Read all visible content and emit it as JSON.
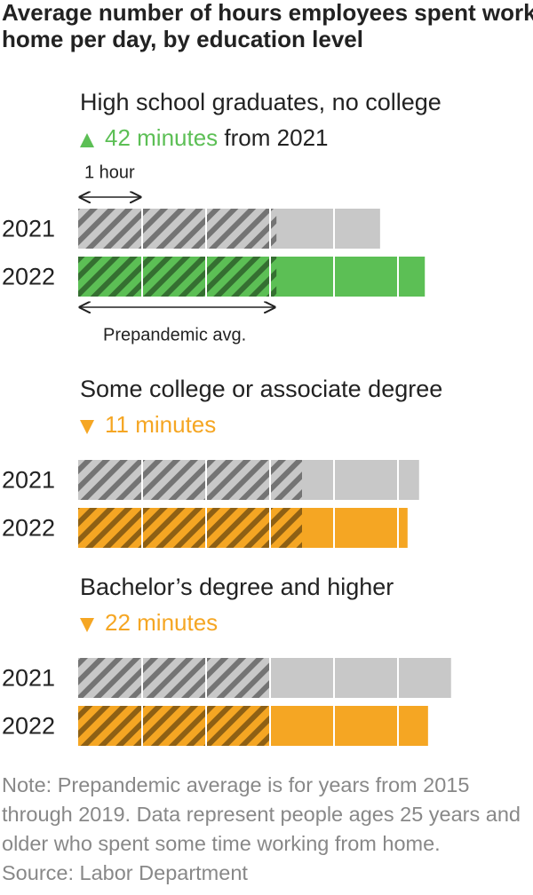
{
  "chart_data": {
    "type": "bar",
    "orientation": "horizontal",
    "title": "Average number of hours employees spent working at home per day, by education level",
    "xlim": [
      0,
      7
    ],
    "xticks": [
      1,
      2,
      3,
      4,
      5,
      6
    ],
    "scale_annotation": {
      "label": "1 hour",
      "value": 1
    },
    "prepandemic_label": "Prepandemic avg.",
    "base_color": "#c8c8c8",
    "up_color": "#5cbf55",
    "down_color": "#f5a623",
    "panels": [
      {
        "title": "High school graduates, no college",
        "change": {
          "direction": "up",
          "label": "42 minutes",
          "suffix": "from 2021"
        },
        "categories": [
          "2021",
          "2022"
        ],
        "values": [
          4.72,
          5.42
        ],
        "prepandemic": 3.1
      },
      {
        "title": "Some college or associate degree",
        "change": {
          "direction": "down",
          "label": "11 minutes"
        },
        "categories": [
          "2021",
          "2022"
        ],
        "values": [
          5.33,
          5.15
        ],
        "prepandemic": 3.5
      },
      {
        "title": "Bachelor’s degree and higher",
        "change": {
          "direction": "down",
          "label": "22 minutes"
        },
        "categories": [
          "2021",
          "2022"
        ],
        "values": [
          5.83,
          5.47
        ],
        "prepandemic": 3.01
      }
    ],
    "note": "Note: Prepandemic average is for years from 2015 through 2019. Data represent people ages 25 years and older who spent some time working from home.",
    "source": "Source: Labor Department"
  }
}
